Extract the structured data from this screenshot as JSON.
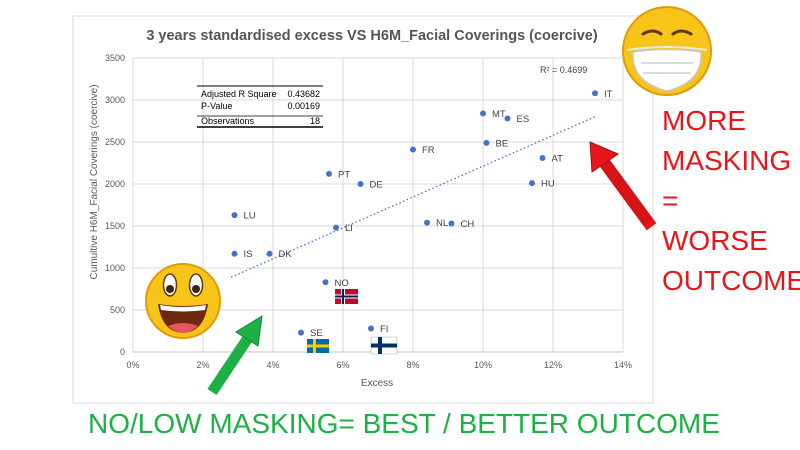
{
  "chart_data": {
    "type": "scatter",
    "title": "3 years standardised excess VS H6M_Facial Coverings (coercive)",
    "xlabel": "Excess",
    "ylabel": "Cumultive H6M_Facial Coverings (coercive)",
    "xlim": [
      0,
      14
    ],
    "ylim": [
      0,
      3500
    ],
    "x_ticks": [
      "0%",
      "2%",
      "4%",
      "6%",
      "8%",
      "10%",
      "12%",
      "14%"
    ],
    "y_ticks": [
      "0",
      "500",
      "1000",
      "1500",
      "2000",
      "2500",
      "3000",
      "3500"
    ],
    "grid": true,
    "points": [
      {
        "label": "IT",
        "x": 13.2,
        "y": 3080
      },
      {
        "label": "MT",
        "x": 10.0,
        "y": 2840
      },
      {
        "label": "ES",
        "x": 10.7,
        "y": 2780
      },
      {
        "label": "BE",
        "x": 10.1,
        "y": 2490
      },
      {
        "label": "FR",
        "x": 8.0,
        "y": 2410
      },
      {
        "label": "AT",
        "x": 11.7,
        "y": 2310
      },
      {
        "label": "PT",
        "x": 5.6,
        "y": 2120
      },
      {
        "label": "DE",
        "x": 6.5,
        "y": 2000
      },
      {
        "label": "HU",
        "x": 11.4,
        "y": 2010
      },
      {
        "label": "LU",
        "x": 2.9,
        "y": 1630
      },
      {
        "label": "NL",
        "x": 8.4,
        "y": 1540
      },
      {
        "label": "CH",
        "x": 9.1,
        "y": 1530
      },
      {
        "label": "LI",
        "x": 5.8,
        "y": 1480
      },
      {
        "label": "IS",
        "x": 2.9,
        "y": 1170
      },
      {
        "label": "DK",
        "x": 3.9,
        "y": 1170
      },
      {
        "label": "NO",
        "x": 5.5,
        "y": 830
      },
      {
        "label": "SE",
        "x": 4.8,
        "y": 230
      },
      {
        "label": "FI",
        "x": 6.8,
        "y": 280
      }
    ],
    "trendline": {
      "x": [
        2.8,
        13.2
      ],
      "y": [
        890,
        2800
      ]
    },
    "r_squared_label": "R² = 0.4699",
    "stats_table": [
      [
        "Adjusted R Square",
        "0.43682"
      ],
      [
        "P-Value",
        "0.00169"
      ],
      [
        "Observations",
        "18"
      ]
    ]
  },
  "annotations": {
    "right_lines": [
      "MORE",
      "MASKING",
      "=",
      "WORSE",
      "OUTCOME"
    ],
    "bottom": "NO/LOW MASKING= BEST / BETTER OUTCOME"
  },
  "colors": {
    "series": "#4472c4",
    "annotation_red": "#e8161b",
    "annotation_green": "#1db045"
  }
}
